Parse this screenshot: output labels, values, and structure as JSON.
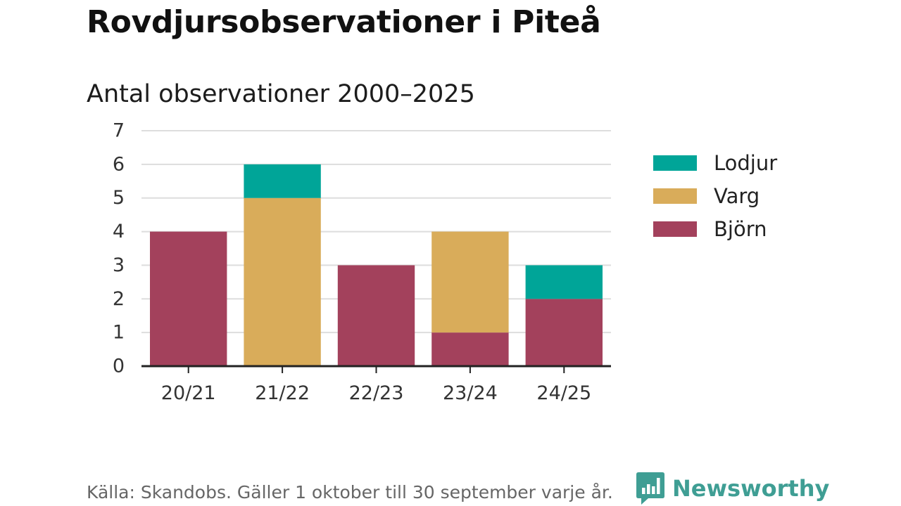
{
  "header": {
    "title": "Rovdjursobservationer i Piteå",
    "subtitle": "Antal observationer 2000–2025"
  },
  "footer": {
    "source": "Källa: Skandobs. Gäller 1 oktober till 30 september varje år.",
    "brand": "Newsworthy"
  },
  "colors": {
    "lodjur": "#00a598",
    "varg": "#d9ac5a",
    "bjorn": "#a3415c",
    "grid": "#dddddd",
    "axis": "#222222",
    "brand": "#3f9e94"
  },
  "chart_data": {
    "type": "bar",
    "stacked": true,
    "title": "Antal observationer 2000–2025",
    "categories": [
      "20/21",
      "21/22",
      "22/23",
      "23/24",
      "24/25"
    ],
    "series": [
      {
        "name": "Björn",
        "color_key": "bjorn",
        "values": [
          4,
          0,
          3,
          1,
          2
        ]
      },
      {
        "name": "Varg",
        "color_key": "varg",
        "values": [
          0,
          5,
          0,
          3,
          0
        ]
      },
      {
        "name": "Lodjur",
        "color_key": "lodjur",
        "values": [
          0,
          1,
          0,
          0,
          1
        ]
      }
    ],
    "legend_order": [
      "Lodjur",
      "Varg",
      "Björn"
    ],
    "legend_position": "right",
    "ylim": [
      0,
      7
    ],
    "yticks": [
      "0",
      "1",
      "2",
      "3",
      "4",
      "5",
      "6",
      "7"
    ],
    "grid": true,
    "xlabel": "",
    "ylabel": ""
  }
}
